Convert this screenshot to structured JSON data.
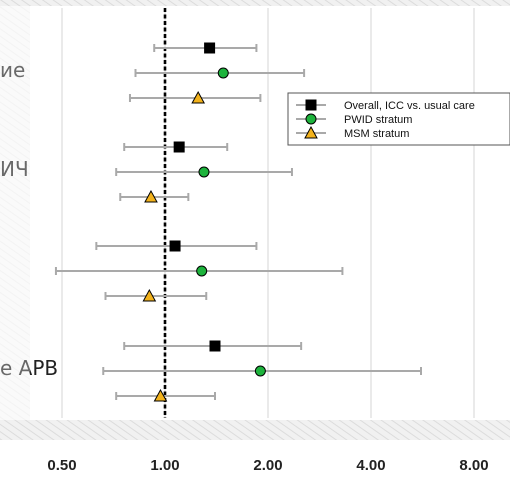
{
  "chart_data": {
    "type": "forest",
    "x_scale": "log2",
    "xlim": [
      0.5,
      8.0
    ],
    "xticks": [
      "0.50",
      "1.00",
      "2.00",
      "4.00",
      "8.00"
    ],
    "xtick_values": [
      0.5,
      1.0,
      2.0,
      4.0,
      8.0
    ],
    "reference_line": 1.0,
    "grid": "vertical",
    "legend_position": "top-right",
    "series": [
      {
        "name": "Overall, ICC vs. usual care",
        "marker": "square",
        "color": "#000000"
      },
      {
        "name": "PWID stratum",
        "marker": "circle",
        "color": "#1db33c"
      },
      {
        "name": "MSM stratum",
        "marker": "triangle",
        "color": "#f2b21c"
      }
    ],
    "row_labels": [
      {
        "group": 0,
        "text": "ие"
      },
      {
        "group": 1,
        "text": "ИЧ"
      },
      {
        "group": 3,
        "text": "е АРВ"
      }
    ],
    "groups": [
      {
        "points": [
          {
            "series": 0,
            "est": 1.35,
            "lo": 0.93,
            "hi": 1.85
          },
          {
            "series": 1,
            "est": 1.48,
            "lo": 0.82,
            "hi": 2.55
          },
          {
            "series": 2,
            "est": 1.25,
            "lo": 0.79,
            "hi": 1.9
          }
        ]
      },
      {
        "points": [
          {
            "series": 0,
            "est": 1.1,
            "lo": 0.76,
            "hi": 1.52
          },
          {
            "series": 1,
            "est": 1.3,
            "lo": 0.72,
            "hi": 2.35
          },
          {
            "series": 2,
            "est": 0.91,
            "lo": 0.74,
            "hi": 1.17
          }
        ]
      },
      {
        "points": [
          {
            "series": 0,
            "est": 1.07,
            "lo": 0.63,
            "hi": 1.85
          },
          {
            "series": 1,
            "est": 1.28,
            "lo": 0.48,
            "hi": 3.3
          },
          {
            "series": 2,
            "est": 0.9,
            "lo": 0.67,
            "hi": 1.32
          }
        ]
      },
      {
        "points": [
          {
            "series": 0,
            "est": 1.4,
            "lo": 0.76,
            "hi": 2.5
          },
          {
            "series": 1,
            "est": 1.9,
            "lo": 0.66,
            "hi": 5.6
          },
          {
            "series": 2,
            "est": 0.97,
            "lo": 0.72,
            "hi": 1.4
          }
        ]
      }
    ]
  }
}
